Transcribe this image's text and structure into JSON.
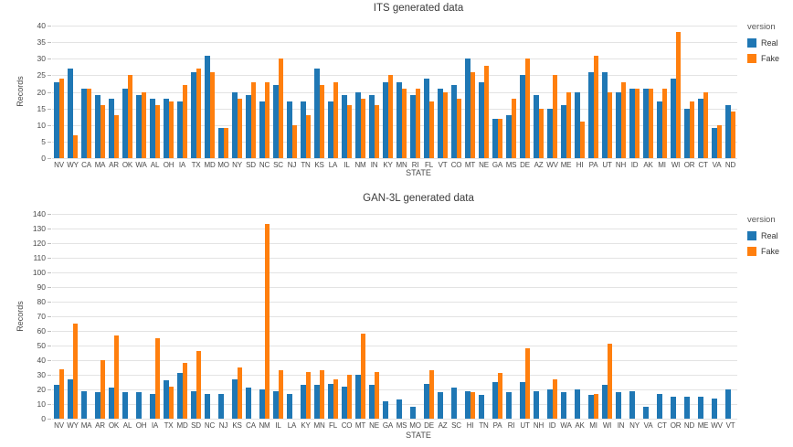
{
  "colors": {
    "real": "#1f77b4",
    "fake": "#ff7f0e",
    "grid": "#e3e3e3",
    "tick_text": "#4a4a4a",
    "title_text": "#3b3b3b",
    "background": "#ffffff"
  },
  "legend": {
    "title": "version",
    "items": [
      {
        "label": "Real",
        "color": "#1f77b4"
      },
      {
        "label": "Fake",
        "color": "#ff7f0e"
      }
    ]
  },
  "chart_data": [
    {
      "type": "bar",
      "title": "ITS generated data",
      "xlabel": "STATE",
      "ylabel": "Records",
      "ylim": [
        0,
        40
      ],
      "ytick_step": 5,
      "yticks": [
        0,
        5,
        10,
        15,
        20,
        25,
        30,
        35,
        40
      ],
      "grid": true,
      "legend_position": "right",
      "categories": [
        "NV",
        "WY",
        "CA",
        "MA",
        "AR",
        "OK",
        "WA",
        "AL",
        "OH",
        "IA",
        "TX",
        "MD",
        "MO",
        "NY",
        "SD",
        "NC",
        "SC",
        "NJ",
        "TN",
        "KS",
        "LA",
        "IL",
        "NM",
        "IN",
        "KY",
        "MN",
        "RI",
        "FL",
        "VT",
        "CO",
        "MT",
        "NE",
        "GA",
        "MS",
        "DE",
        "AZ",
        "WV",
        "ME",
        "HI",
        "PA",
        "UT",
        "NH",
        "ID",
        "AK",
        "MI",
        "WI",
        "OR",
        "CT",
        "VA",
        "ND"
      ],
      "series": [
        {
          "name": "Real",
          "color": "#1f77b4",
          "values": [
            23,
            27,
            21,
            19,
            18,
            21,
            19,
            18,
            18,
            17,
            26,
            31,
            9,
            20,
            19,
            17,
            22,
            17,
            17,
            27,
            17,
            19,
            20,
            19,
            23,
            23,
            19,
            24,
            21,
            22,
            30,
            23,
            12,
            13,
            25,
            19,
            15,
            16,
            20,
            26,
            26,
            20,
            21,
            21,
            17,
            24,
            15,
            18,
            9,
            16
          ]
        },
        {
          "name": "Fake",
          "color": "#ff7f0e",
          "values": [
            24,
            7,
            21,
            16,
            13,
            25,
            20,
            16,
            17,
            22,
            27,
            26,
            9,
            18,
            23,
            23,
            30,
            10,
            13,
            22,
            23,
            16,
            18,
            16,
            25,
            21,
            21,
            17,
            20,
            18,
            26,
            28,
            12,
            18,
            30,
            15,
            25,
            20,
            11,
            31,
            20,
            23,
            21,
            21,
            21,
            38,
            17,
            20,
            10,
            14
          ]
        }
      ]
    },
    {
      "type": "bar",
      "title": "GAN-3L generated data",
      "xlabel": "STATE",
      "ylabel": "Records",
      "ylim": [
        0,
        140
      ],
      "ytick_step": 10,
      "yticks": [
        0,
        10,
        20,
        30,
        40,
        50,
        60,
        70,
        80,
        90,
        100,
        110,
        120,
        130,
        140
      ],
      "grid": true,
      "legend_position": "right",
      "categories": [
        "NV",
        "WY",
        "MA",
        "AR",
        "OK",
        "AL",
        "OH",
        "IA",
        "TX",
        "MD",
        "SD",
        "NC",
        "NJ",
        "KS",
        "CA",
        "NM",
        "IL",
        "LA",
        "KY",
        "MN",
        "FL",
        "CO",
        "MT",
        "NE",
        "GA",
        "MS",
        "MO",
        "DE",
        "AZ",
        "SC",
        "HI",
        "TN",
        "PA",
        "RI",
        "UT",
        "NH",
        "ID",
        "WA",
        "AK",
        "MI",
        "WI",
        "IN",
        "NY",
        "VA",
        "CT",
        "OR",
        "ND",
        "ME",
        "WV",
        "VT"
      ],
      "series": [
        {
          "name": "Real",
          "color": "#1f77b4",
          "values": [
            23,
            27,
            19,
            18,
            21,
            18,
            18,
            17,
            26,
            31,
            19,
            17,
            17,
            27,
            21,
            20,
            19,
            17,
            23,
            23,
            24,
            22,
            30,
            23,
            12,
            13,
            8,
            24,
            18,
            21,
            19,
            16,
            25,
            18,
            25,
            19,
            20,
            18,
            20,
            16,
            23,
            18,
            19,
            8,
            17,
            15,
            15,
            15,
            14,
            20
          ]
        },
        {
          "name": "Fake",
          "color": "#ff7f0e",
          "values": [
            34,
            65,
            null,
            40,
            57,
            null,
            null,
            55,
            22,
            38,
            46,
            null,
            null,
            35,
            null,
            133,
            33,
            null,
            32,
            33,
            27,
            30,
            58,
            32,
            null,
            null,
            null,
            33,
            null,
            null,
            18,
            null,
            31,
            null,
            48,
            null,
            27,
            null,
            null,
            17,
            51,
            null,
            null,
            null,
            null,
            null,
            null,
            null,
            null,
            null
          ]
        }
      ]
    }
  ]
}
